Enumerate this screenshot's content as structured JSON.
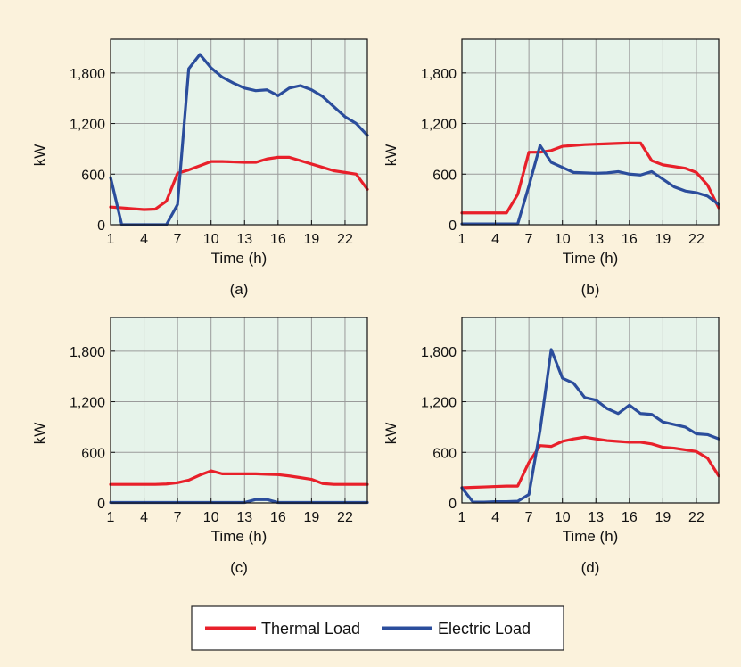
{
  "chart_data": [
    {
      "type": "line",
      "panel_label": "(a)",
      "xlabel": "Time (h)",
      "ylabel": "kW",
      "xlim": [
        1,
        24
      ],
      "ylim": [
        0,
        2200
      ],
      "xticks": [
        "1",
        "4",
        "7",
        "10",
        "13",
        "16",
        "19",
        "22"
      ],
      "yticks": [
        "0",
        "600",
        "1,200",
        "1,800"
      ],
      "grid": true,
      "x": [
        1,
        2,
        3,
        4,
        5,
        6,
        7,
        8,
        9,
        10,
        11,
        12,
        13,
        14,
        15,
        16,
        17,
        18,
        19,
        20,
        21,
        22,
        23,
        24
      ],
      "series": [
        {
          "name": "Thermal Load",
          "color": "#e8202a",
          "values": [
            210,
            200,
            190,
            180,
            185,
            280,
            610,
            650,
            700,
            750,
            750,
            745,
            740,
            740,
            780,
            800,
            800,
            760,
            720,
            680,
            640,
            620,
            600,
            420
          ]
        },
        {
          "name": "Electric Load",
          "color": "#2b4d9c",
          "values": [
            560,
            0,
            0,
            0,
            0,
            0,
            240,
            1850,
            2020,
            1860,
            1750,
            1680,
            1620,
            1590,
            1600,
            1530,
            1620,
            1650,
            1600,
            1520,
            1400,
            1280,
            1200,
            1060
          ]
        }
      ]
    },
    {
      "type": "line",
      "panel_label": "(b)",
      "xlabel": "Time (h)",
      "ylabel": "kW",
      "xlim": [
        1,
        24
      ],
      "ylim": [
        0,
        2200
      ],
      "xticks": [
        "1",
        "4",
        "7",
        "10",
        "13",
        "16",
        "19",
        "22"
      ],
      "yticks": [
        "0",
        "600",
        "1,200",
        "1,800"
      ],
      "grid": true,
      "x": [
        1,
        2,
        3,
        4,
        5,
        6,
        7,
        8,
        9,
        10,
        11,
        12,
        13,
        14,
        15,
        16,
        17,
        18,
        19,
        20,
        21,
        22,
        23,
        24
      ],
      "series": [
        {
          "name": "Thermal Load",
          "color": "#e8202a",
          "values": [
            140,
            140,
            140,
            140,
            140,
            360,
            860,
            860,
            880,
            930,
            940,
            950,
            955,
            960,
            965,
            970,
            970,
            760,
            710,
            690,
            670,
            620,
            470,
            200
          ]
        },
        {
          "name": "Electric Load",
          "color": "#2b4d9c",
          "values": [
            10,
            10,
            10,
            10,
            10,
            10,
            460,
            940,
            740,
            680,
            620,
            615,
            610,
            615,
            630,
            600,
            590,
            630,
            540,
            450,
            400,
            380,
            340,
            240
          ]
        }
      ]
    },
    {
      "type": "line",
      "panel_label": "(c)",
      "xlabel": "Time (h)",
      "ylabel": "kW",
      "xlim": [
        1,
        24
      ],
      "ylim": [
        0,
        2200
      ],
      "xticks": [
        "1",
        "4",
        "7",
        "10",
        "13",
        "16",
        "19",
        "22"
      ],
      "yticks": [
        "0",
        "600",
        "1,200",
        "1,800"
      ],
      "grid": true,
      "x": [
        1,
        2,
        3,
        4,
        5,
        6,
        7,
        8,
        9,
        10,
        11,
        12,
        13,
        14,
        15,
        16,
        17,
        18,
        19,
        20,
        21,
        22,
        23,
        24
      ],
      "series": [
        {
          "name": "Thermal Load",
          "color": "#e8202a",
          "values": [
            220,
            220,
            220,
            220,
            220,
            225,
            240,
            270,
            330,
            380,
            345,
            345,
            345,
            345,
            340,
            335,
            320,
            300,
            280,
            230,
            220,
            220,
            220,
            220
          ]
        },
        {
          "name": "Electric Load",
          "color": "#2b4d9c",
          "values": [
            5,
            5,
            5,
            5,
            5,
            5,
            5,
            5,
            5,
            5,
            5,
            5,
            5,
            40,
            40,
            5,
            5,
            5,
            5,
            5,
            5,
            5,
            5,
            5
          ]
        }
      ]
    },
    {
      "type": "line",
      "panel_label": "(d)",
      "xlabel": "Time (h)",
      "ylabel": "kW",
      "xlim": [
        1,
        24
      ],
      "ylim": [
        0,
        2200
      ],
      "xticks": [
        "1",
        "4",
        "7",
        "10",
        "13",
        "16",
        "19",
        "22"
      ],
      "yticks": [
        "0",
        "600",
        "1,200",
        "1,800"
      ],
      "grid": true,
      "x": [
        1,
        2,
        3,
        4,
        5,
        6,
        7,
        8,
        9,
        10,
        11,
        12,
        13,
        14,
        15,
        16,
        17,
        18,
        19,
        20,
        21,
        22,
        23,
        24
      ],
      "series": [
        {
          "name": "Thermal Load",
          "color": "#e8202a",
          "values": [
            180,
            185,
            190,
            195,
            200,
            200,
            480,
            680,
            670,
            730,
            760,
            780,
            760,
            740,
            730,
            720,
            720,
            700,
            660,
            650,
            630,
            610,
            530,
            320
          ]
        },
        {
          "name": "Electric Load",
          "color": "#2b4d9c",
          "values": [
            180,
            10,
            10,
            15,
            15,
            20,
            100,
            860,
            1820,
            1480,
            1420,
            1250,
            1220,
            1120,
            1060,
            1160,
            1060,
            1050,
            960,
            930,
            900,
            820,
            810,
            760
          ]
        }
      ]
    }
  ],
  "legend": {
    "placement": "bottom-center",
    "items": [
      {
        "label": "Thermal Load",
        "color": "#e8202a"
      },
      {
        "label": "Electric Load",
        "color": "#2b4d9c"
      }
    ]
  },
  "style": {
    "background": "#fbf2dc",
    "plot_background": "#e6f3ea",
    "grid_color": "#9a9a9a"
  }
}
